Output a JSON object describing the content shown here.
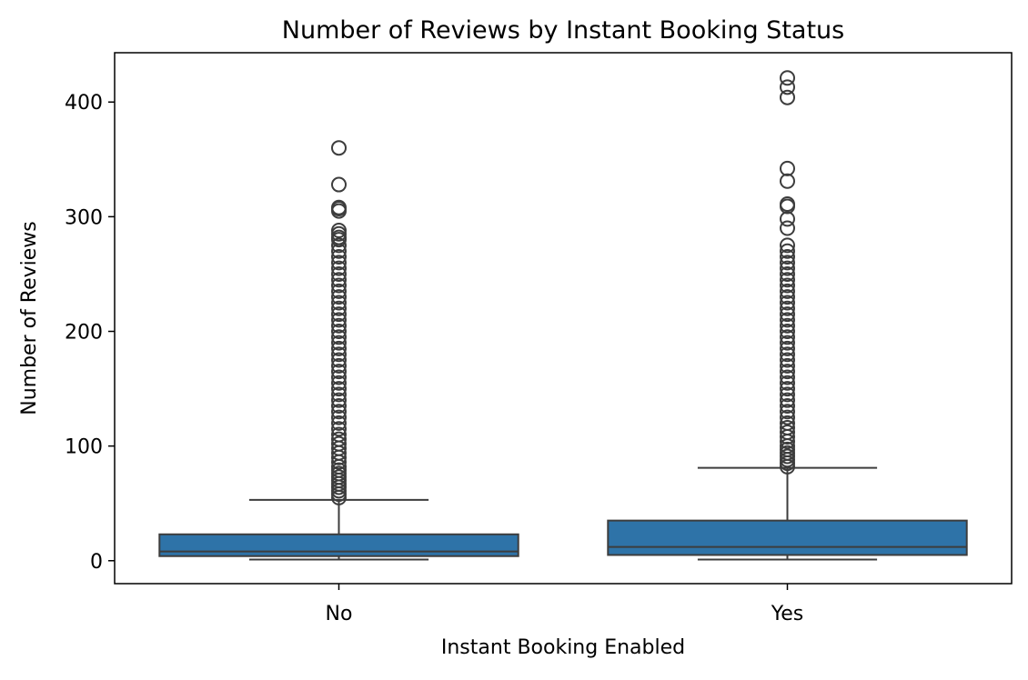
{
  "chart_data": {
    "type": "box",
    "title": "Number of Reviews by Instant Booking Status",
    "xlabel": "Instant Booking Enabled",
    "ylabel": "Number of Reviews",
    "ylim": [
      -20,
      443
    ],
    "yticks": [
      0,
      100,
      200,
      300,
      400
    ],
    "categories": [
      "No",
      "Yes"
    ],
    "box_color": "#2e73a8",
    "line_color": "#3d3d3d",
    "grid": false,
    "series": [
      {
        "category": "No",
        "whisker_low": 1,
        "q1": 4,
        "median": 8,
        "q3": 23,
        "whisker_high": 53,
        "outliers": [
          55,
          58,
          61,
          64,
          67,
          70,
          73,
          76,
          79,
          82,
          86,
          90,
          94,
          98,
          102,
          106,
          110,
          115,
          120,
          125,
          130,
          135,
          140,
          145,
          150,
          155,
          160,
          165,
          170,
          175,
          180,
          185,
          190,
          195,
          200,
          205,
          210,
          215,
          220,
          225,
          230,
          235,
          240,
          245,
          250,
          255,
          260,
          265,
          270,
          275,
          280,
          282,
          285,
          288,
          305,
          307,
          308,
          328,
          360
        ]
      },
      {
        "category": "Yes",
        "whisker_low": 1,
        "q1": 5,
        "median": 12,
        "q3": 35,
        "whisker_high": 81,
        "outliers": [
          82,
          85,
          88,
          91,
          94,
          97,
          100,
          104,
          108,
          112,
          116,
          120,
          125,
          130,
          135,
          140,
          145,
          150,
          155,
          160,
          165,
          170,
          175,
          180,
          185,
          190,
          195,
          200,
          205,
          210,
          215,
          220,
          225,
          230,
          235,
          240,
          245,
          250,
          255,
          260,
          265,
          270,
          275,
          290,
          298,
          309,
          311,
          331,
          342,
          404,
          413,
          421
        ]
      }
    ]
  }
}
